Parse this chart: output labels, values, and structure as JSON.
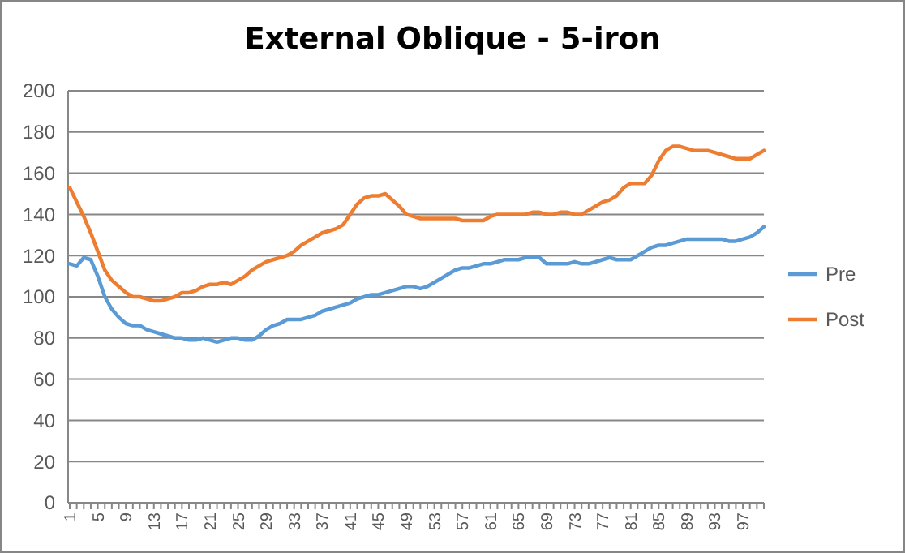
{
  "chart_data": {
    "type": "line",
    "title": "External Oblique - 5-iron",
    "categories": [
      "1",
      null,
      null,
      null,
      "5",
      null,
      null,
      null,
      "9",
      null,
      null,
      null,
      "13",
      null,
      null,
      null,
      "17",
      null,
      null,
      null,
      "21",
      null,
      null,
      null,
      "25",
      null,
      null,
      null,
      "29",
      null,
      null,
      null,
      "33",
      null,
      null,
      null,
      "37",
      null,
      null,
      null,
      "41",
      null,
      null,
      null,
      "45",
      null,
      null,
      null,
      "49",
      null,
      null,
      null,
      "53",
      null,
      null,
      null,
      "57",
      null,
      null,
      null,
      "61",
      null,
      null,
      null,
      "65",
      null,
      null,
      null,
      "69",
      null,
      null,
      null,
      "73",
      null,
      null,
      null,
      "77",
      null,
      null,
      null,
      "81",
      null,
      null,
      null,
      "85",
      null,
      null,
      null,
      "89",
      null,
      null,
      null,
      "93",
      null,
      null,
      null,
      "97",
      null,
      null,
      null
    ],
    "series": [
      {
        "name": "Pre",
        "color": "#5b9bd5",
        "values": [
          116,
          115,
          119,
          118,
          110,
          100,
          94,
          90,
          87,
          86,
          86,
          84,
          83,
          82,
          81,
          80,
          80,
          79,
          79,
          80,
          79,
          78,
          79,
          80,
          80,
          79,
          79,
          81,
          84,
          86,
          87,
          89,
          89,
          89,
          90,
          91,
          93,
          94,
          95,
          96,
          97,
          99,
          100,
          101,
          101,
          102,
          103,
          104,
          105,
          105,
          104,
          105,
          107,
          109,
          111,
          113,
          114,
          114,
          115,
          116,
          116,
          117,
          118,
          118,
          118,
          119,
          119,
          119,
          116,
          116,
          116,
          116,
          117,
          116,
          116,
          117,
          118,
          119,
          118,
          118,
          118,
          120,
          122,
          124,
          125,
          125,
          126,
          127,
          128,
          128,
          128,
          128,
          128,
          128,
          127,
          127,
          128,
          129,
          131,
          134
        ]
      },
      {
        "name": "Post",
        "color": "#ed7d31",
        "values": [
          153,
          146,
          139,
          131,
          122,
          113,
          108,
          105,
          102,
          100,
          100,
          99,
          98,
          98,
          99,
          100,
          102,
          102,
          103,
          105,
          106,
          106,
          107,
          106,
          108,
          110,
          113,
          115,
          117,
          118,
          119,
          120,
          122,
          125,
          127,
          129,
          131,
          132,
          133,
          135,
          140,
          145,
          148,
          149,
          149,
          150,
          147,
          144,
          140,
          139,
          138,
          138,
          138,
          138,
          138,
          138,
          137,
          137,
          137,
          137,
          139,
          140,
          140,
          140,
          140,
          140,
          141,
          141,
          140,
          140,
          141,
          141,
          140,
          140,
          142,
          144,
          146,
          147,
          149,
          153,
          155,
          155,
          155,
          159,
          166,
          171,
          173,
          173,
          172,
          171,
          171,
          171,
          170,
          169,
          168,
          167,
          167,
          167,
          169,
          171
        ]
      }
    ],
    "ylim": [
      0,
      200
    ],
    "yticks": [
      0,
      20,
      40,
      60,
      80,
      100,
      120,
      140,
      160,
      180,
      200
    ],
    "grid": "y",
    "legend": "right",
    "marker": "none",
    "line_style": "solid"
  }
}
